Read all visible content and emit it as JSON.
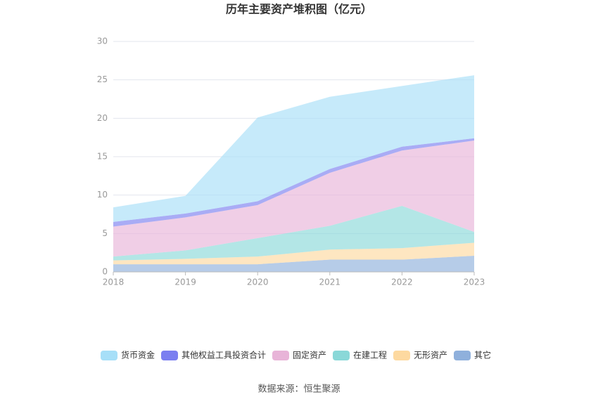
{
  "chart_data": {
    "type": "stacked-area",
    "title": "历年主要资产堆积图（亿元）",
    "source": "数据来源：恒生聚源",
    "categories": [
      "2018",
      "2019",
      "2020",
      "2021",
      "2022",
      "2023"
    ],
    "series": [
      {
        "name": "其它",
        "color": "#8fb0dc",
        "values": [
          1.0,
          1.0,
          1.0,
          1.6,
          1.6,
          2.1
        ]
      },
      {
        "name": "无形资产",
        "color": "#fdd9a0",
        "values": [
          0.5,
          0.7,
          1.0,
          1.3,
          1.5,
          1.7
        ]
      },
      {
        "name": "在建工程",
        "color": "#8ad8d8",
        "values": [
          0.5,
          1.1,
          2.4,
          3.1,
          5.5,
          1.4
        ]
      },
      {
        "name": "固定资产",
        "color": "#e8b4d8",
        "values": [
          3.9,
          4.3,
          4.3,
          6.9,
          7.2,
          11.9
        ]
      },
      {
        "name": "其他权益工具投资合计",
        "color": "#7b7ff0",
        "values": [
          0.6,
          0.5,
          0.5,
          0.5,
          0.5,
          0.3
        ]
      },
      {
        "name": "货币资金",
        "color": "#a7dff8",
        "values": [
          1.9,
          2.3,
          10.9,
          9.4,
          7.9,
          8.2
        ]
      }
    ],
    "ylim": [
      0,
      30
    ],
    "yticks": [
      0,
      5,
      10,
      15,
      20,
      25,
      30
    ],
    "grid": true
  }
}
